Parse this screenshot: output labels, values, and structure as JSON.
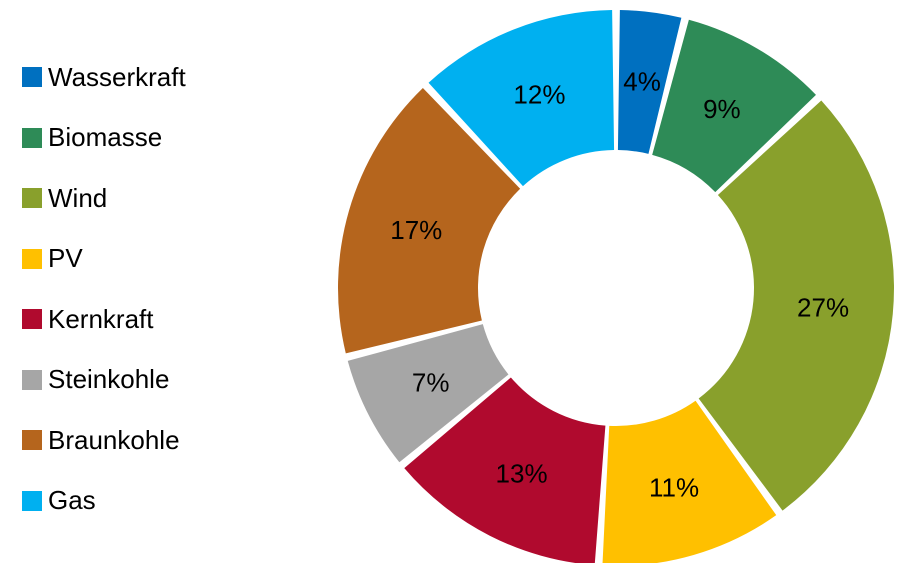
{
  "chart_data": {
    "type": "pie",
    "variant": "donut",
    "title": "",
    "legend_position": "left",
    "categories": [
      "Wasserkraft",
      "Biomasse",
      "Wind",
      "PV",
      "Kernkraft",
      "Steinkohle",
      "Braunkohle",
      "Gas"
    ],
    "values": [
      4,
      9,
      27,
      11,
      13,
      7,
      17,
      12
    ],
    "labels": [
      "4%",
      "9%",
      "27%",
      "11%",
      "13%",
      "7%",
      "17%",
      "12%"
    ],
    "colors": [
      "#0070C0",
      "#2E8B57",
      "#89A02C",
      "#FFC000",
      "#B00A2E",
      "#A6A6A6",
      "#B5651D",
      "#00B0F0"
    ],
    "unit": "%"
  }
}
